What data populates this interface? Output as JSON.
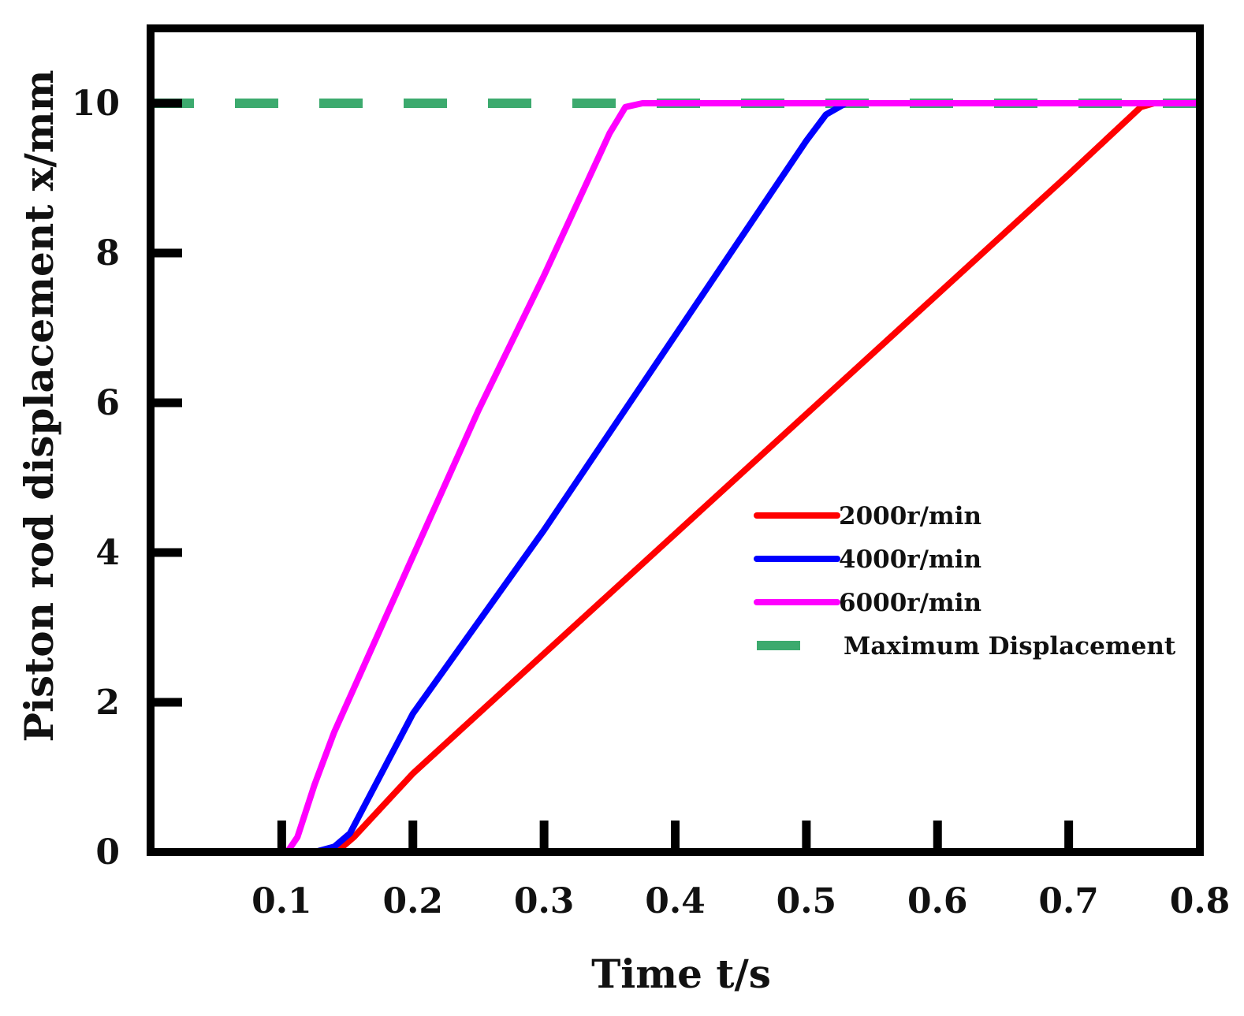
{
  "chart_data": {
    "type": "line",
    "title": "",
    "xlabel": "Time t/s",
    "ylabel": "Piston rod displacement x/mm",
    "xlim": [
      0,
      0.8
    ],
    "ylim": [
      0,
      11
    ],
    "x_ticks": [
      0.1,
      0.2,
      0.3,
      0.4,
      0.5,
      0.6,
      0.7,
      0.8
    ],
    "x_tick_labels": [
      "0.1",
      "0.2",
      "0.3",
      "0.4",
      "0.5",
      "0.6",
      "0.7",
      "0.8"
    ],
    "y_ticks": [
      0,
      2,
      4,
      6,
      8,
      10
    ],
    "y_tick_labels": [
      "0",
      "2",
      "4",
      "6",
      "8",
      "10"
    ],
    "grid": false,
    "legend_position": "right",
    "series": [
      {
        "name": "2000r/min",
        "color": "#ff0000",
        "style": "solid",
        "points": [
          [
            0,
            0
          ],
          [
            0.135,
            0
          ],
          [
            0.145,
            0.05
          ],
          [
            0.155,
            0.2
          ],
          [
            0.2,
            1.05
          ],
          [
            0.3,
            2.65
          ],
          [
            0.4,
            4.25
          ],
          [
            0.5,
            5.85
          ],
          [
            0.6,
            7.45
          ],
          [
            0.7,
            9.05
          ],
          [
            0.755,
            9.95
          ],
          [
            0.765,
            10.0
          ],
          [
            0.8,
            10.0
          ]
        ]
      },
      {
        "name": "4000r/min",
        "color": "#0000ff",
        "style": "solid",
        "points": [
          [
            0,
            0
          ],
          [
            0.125,
            0
          ],
          [
            0.14,
            0.07
          ],
          [
            0.152,
            0.25
          ],
          [
            0.2,
            1.85
          ],
          [
            0.3,
            4.3
          ],
          [
            0.4,
            6.9
          ],
          [
            0.5,
            9.5
          ],
          [
            0.515,
            9.85
          ],
          [
            0.53,
            10.0
          ],
          [
            0.8,
            10.0
          ]
        ]
      },
      {
        "name": "6000r/min",
        "color": "#ff00ff",
        "style": "solid",
        "points": [
          [
            0,
            0
          ],
          [
            0.1,
            0
          ],
          [
            0.105,
            0.02
          ],
          [
            0.112,
            0.2
          ],
          [
            0.125,
            0.9
          ],
          [
            0.14,
            1.6
          ],
          [
            0.2,
            3.95
          ],
          [
            0.25,
            5.9
          ],
          [
            0.3,
            7.7
          ],
          [
            0.35,
            9.6
          ],
          [
            0.362,
            9.95
          ],
          [
            0.375,
            10.0
          ],
          [
            0.8,
            10.0
          ]
        ]
      },
      {
        "name": "Maximum Displacement",
        "color": "#3caa6e",
        "style": "dashed",
        "points": [
          [
            0,
            10
          ],
          [
            0.8,
            10
          ]
        ]
      }
    ]
  }
}
